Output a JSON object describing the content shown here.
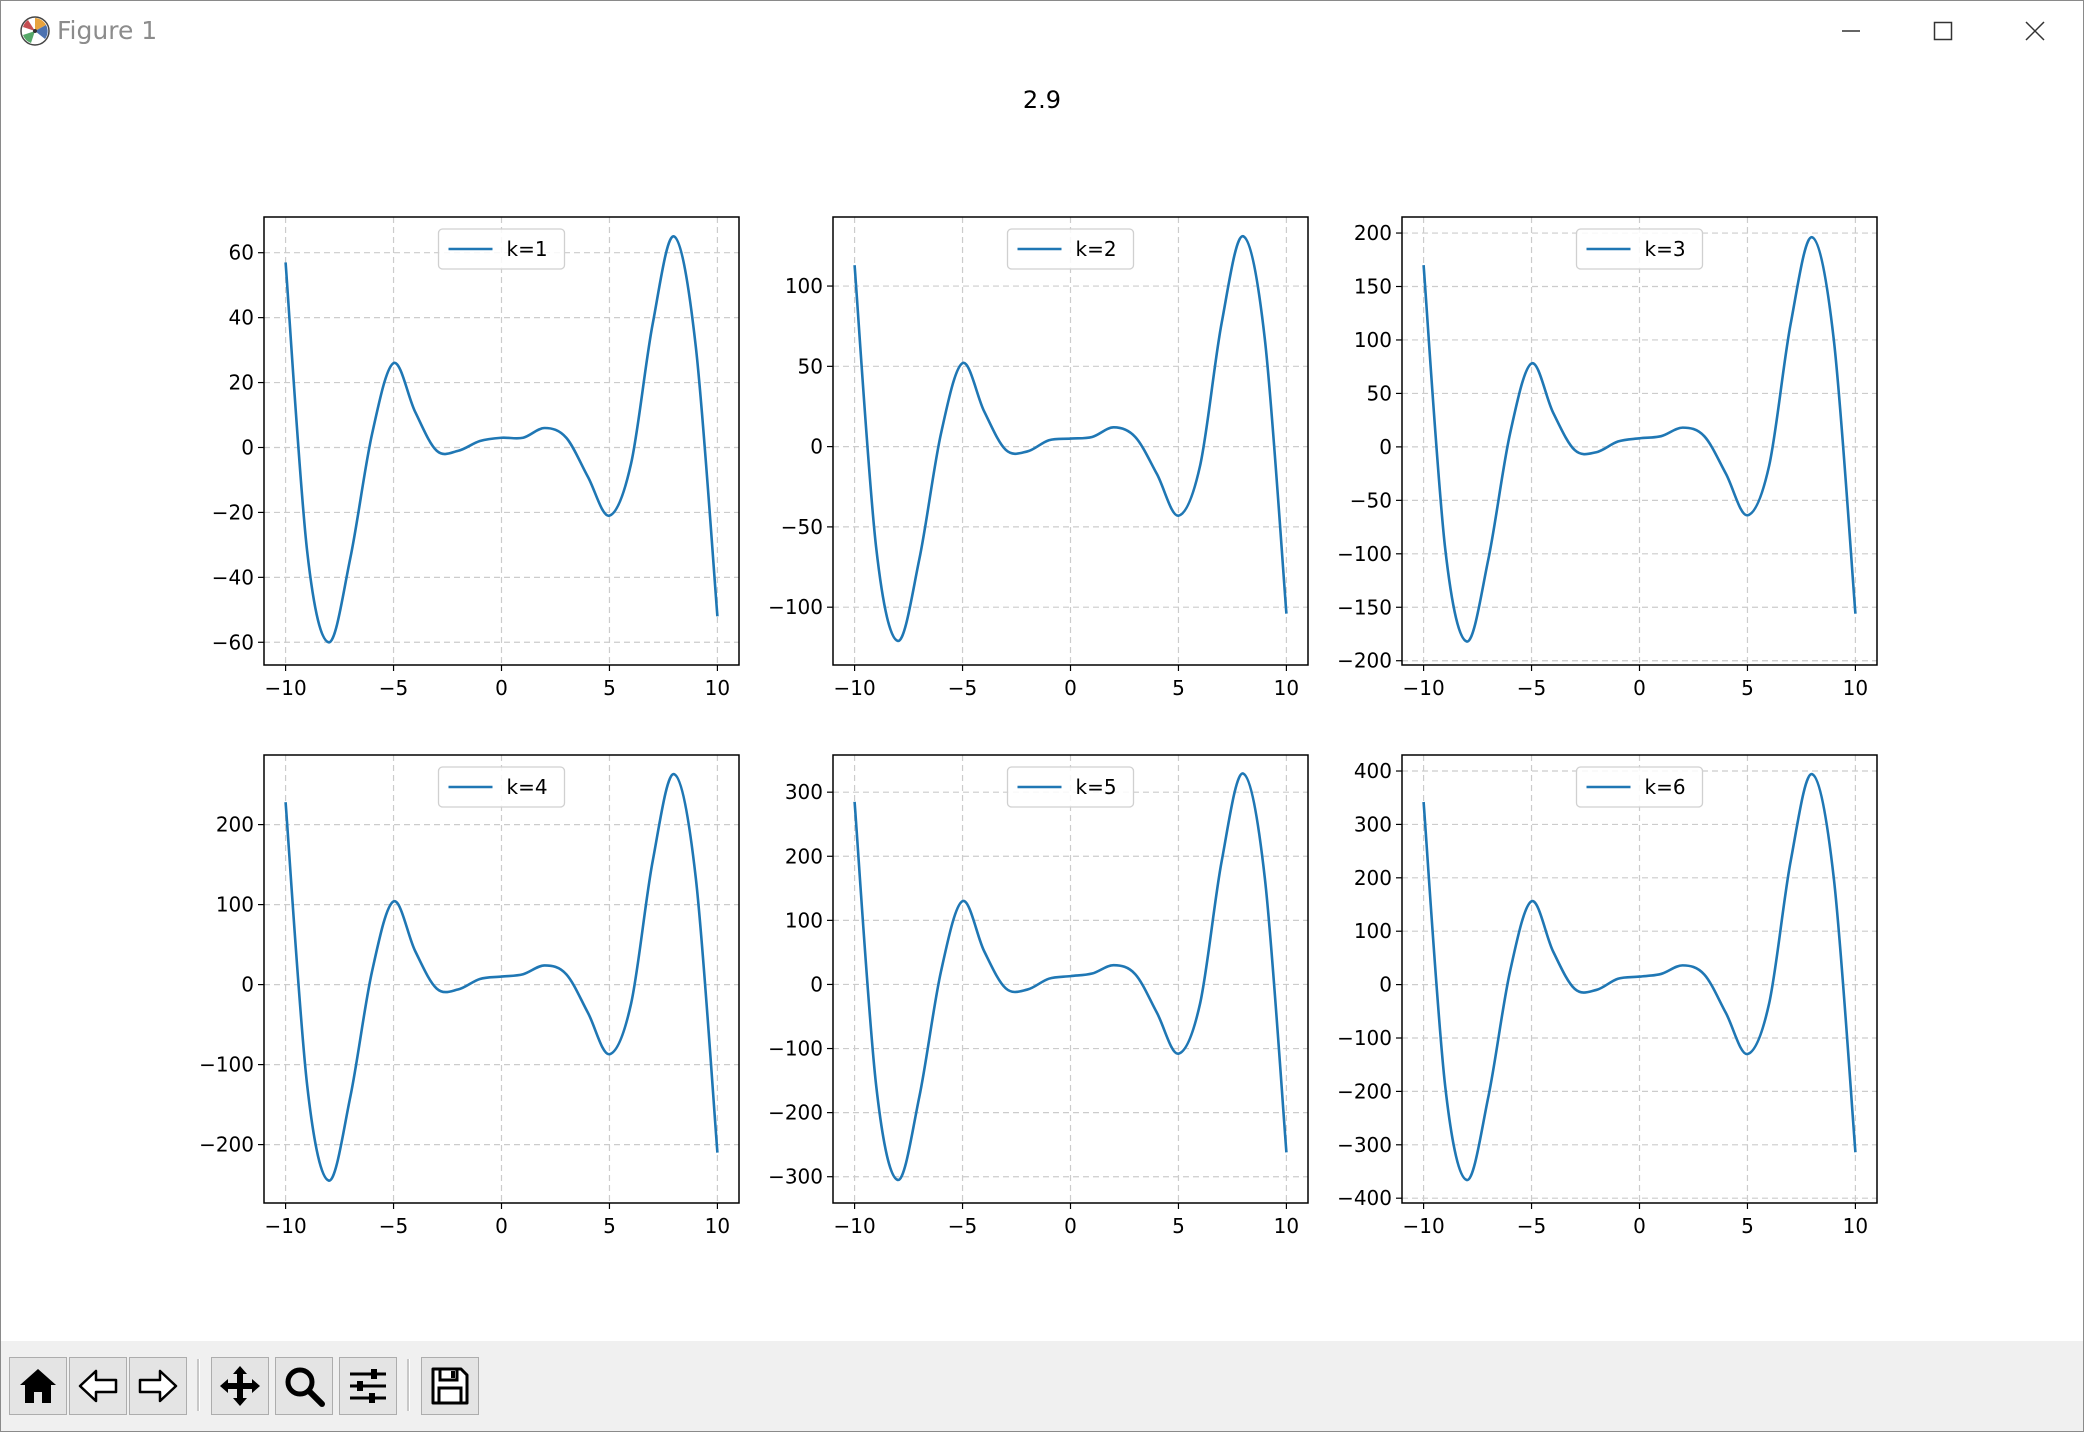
{
  "window": {
    "title": "Figure 1",
    "app_icon": "matplotlib-logo-icon",
    "controls": [
      "minimize-icon",
      "maximize-icon",
      "close-icon"
    ]
  },
  "figure": {
    "suptitle": "2.9"
  },
  "toolbar": {
    "buttons": [
      "home-icon",
      "back-arrow-icon",
      "forward-arrow-icon",
      "pan-move-icon",
      "zoom-magnifier-icon",
      "configure-subplots-icon",
      "save-floppy-icon"
    ]
  },
  "colors": {
    "line": "#1f77b4",
    "grid": "#cccccc",
    "toolbar_bg": "#f0f0f0"
  },
  "chart_data": [
    {
      "type": "line",
      "x": [
        -10,
        -9,
        -8,
        -7,
        -6,
        -5,
        -4,
        -3,
        -2,
        -1,
        0,
        1,
        2,
        3,
        4,
        5,
        6,
        7,
        8,
        9,
        10
      ],
      "series": [
        {
          "name": "k=1",
          "values": [
            57,
            -32,
            -60,
            -34,
            4,
            26,
            11,
            -1,
            -1,
            2,
            3,
            3,
            6,
            3,
            -9,
            -21,
            -5,
            38,
            65,
            31,
            -52
          ]
        }
      ],
      "xlim": [
        -11,
        11
      ],
      "ylim": [
        -67,
        71
      ],
      "xticks": [
        -10,
        -5,
        0,
        5,
        10
      ],
      "yticks": [
        -60,
        -40,
        -20,
        0,
        20,
        40,
        60
      ],
      "grid": true,
      "legend": "upper center"
    },
    {
      "type": "line",
      "x": [
        -10,
        -9,
        -8,
        -7,
        -6,
        -5,
        -4,
        -3,
        -2,
        -1,
        0,
        1,
        2,
        3,
        4,
        5,
        6,
        7,
        8,
        9,
        10
      ],
      "series": [
        {
          "name": "k=2",
          "values": [
            113,
            -63,
            -121,
            -70,
            8,
            52,
            22,
            -2,
            -3,
            4,
            5,
            6,
            12,
            6,
            -17,
            -43,
            -12,
            77,
            131,
            67,
            -104
          ]
        }
      ],
      "xlim": [
        -11,
        11
      ],
      "ylim": [
        -136,
        143
      ],
      "xticks": [
        -10,
        -5,
        0,
        5,
        10
      ],
      "yticks": [
        -100,
        -50,
        0,
        50,
        100
      ],
      "grid": true,
      "legend": "upper center"
    },
    {
      "type": "line",
      "x": [
        -10,
        -9,
        -8,
        -7,
        -6,
        -5,
        -4,
        -3,
        -2,
        -1,
        0,
        1,
        2,
        3,
        4,
        5,
        6,
        7,
        8,
        9,
        10
      ],
      "series": [
        {
          "name": "k=3",
          "values": [
            170,
            -95,
            -182,
            -105,
            12,
            78,
            32,
            -3,
            -5,
            5,
            8,
            10,
            18,
            10,
            -25,
            -64,
            -18,
            115,
            196,
            100,
            -156
          ]
        }
      ],
      "xlim": [
        -11,
        11
      ],
      "ylim": [
        -204,
        215
      ],
      "xticks": [
        -10,
        -5,
        0,
        5,
        10
      ],
      "yticks": [
        -200,
        -150,
        -100,
        -50,
        0,
        50,
        100,
        150,
        200
      ],
      "grid": true,
      "legend": "upper center"
    },
    {
      "type": "line",
      "x": [
        -10,
        -9,
        -8,
        -7,
        -6,
        -5,
        -4,
        -3,
        -2,
        -1,
        0,
        1,
        2,
        3,
        4,
        5,
        6,
        7,
        8,
        9,
        10
      ],
      "series": [
        {
          "name": "k=4",
          "values": [
            228,
            -126,
            -245,
            -140,
            16,
            104,
            42,
            -5,
            -6,
            7,
            10,
            13,
            24,
            13,
            -35,
            -87,
            -24,
            154,
            263,
            133,
            -210
          ]
        }
      ],
      "xlim": [
        -11,
        11
      ],
      "ylim": [
        -273,
        287
      ],
      "xticks": [
        -10,
        -5,
        0,
        5,
        10
      ],
      "yticks": [
        -200,
        -100,
        0,
        100,
        200
      ],
      "grid": true,
      "legend": "upper center"
    },
    {
      "type": "line",
      "x": [
        -10,
        -9,
        -8,
        -7,
        -6,
        -5,
        -4,
        -3,
        -2,
        -1,
        0,
        1,
        2,
        3,
        4,
        5,
        6,
        7,
        8,
        9,
        10
      ],
      "series": [
        {
          "name": "k=5",
          "values": [
            285,
            -158,
            -305,
            -175,
            20,
            130,
            52,
            -6,
            -8,
            9,
            13,
            17,
            30,
            16,
            -44,
            -108,
            -30,
            192,
            329,
            166,
            -262
          ]
        }
      ],
      "xlim": [
        -11,
        11
      ],
      "ylim": [
        -341,
        358
      ],
      "xticks": [
        -10,
        -5,
        0,
        5,
        10
      ],
      "yticks": [
        -300,
        -200,
        -100,
        0,
        100,
        200,
        300
      ],
      "grid": true,
      "legend": "upper center"
    },
    {
      "type": "line",
      "x": [
        -10,
        -9,
        -8,
        -7,
        -6,
        -5,
        -4,
        -3,
        -2,
        -1,
        0,
        1,
        2,
        3,
        4,
        5,
        6,
        7,
        8,
        9,
        10
      ],
      "series": [
        {
          "name": "k=6",
          "values": [
            342,
            -190,
            -366,
            -210,
            24,
            156,
            62,
            -8,
            -10,
            11,
            15,
            20,
            36,
            19,
            -53,
            -130,
            -36,
            231,
            394,
            199,
            -314
          ]
        }
      ],
      "xlim": [
        -11,
        11
      ],
      "ylim": [
        -409,
        430
      ],
      "xticks": [
        -10,
        -5,
        0,
        5,
        10
      ],
      "yticks": [
        -400,
        -300,
        -200,
        -100,
        0,
        100,
        200,
        300,
        400
      ],
      "grid": true,
      "legend": "upper center"
    }
  ]
}
